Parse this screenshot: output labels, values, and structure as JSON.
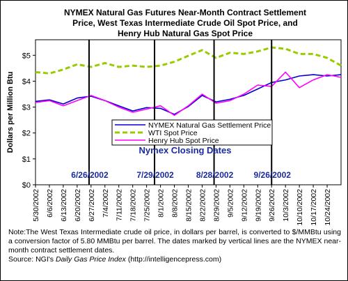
{
  "chart_data": {
    "type": "line",
    "title": "NYMEX Natural Gas Futures Near-Month Contract Settlement Price, West Texas Intermediate Crude Oil Spot Price, and Henry Hub Natural Gas Spot Price",
    "title_lines": [
      "NYMEX Natural Gas Futures Near-Month Contract Settlement",
      "Price, West Texas Intermediate Crude Oil Spot Price, and",
      "Henry Hub Natural Gas Spot Price"
    ],
    "ylabel": "Dollars per Million Btu",
    "ylim": [
      0,
      5.6
    ],
    "yticks": [
      "$0",
      "$1",
      "$2",
      "$3",
      "$4",
      "$5"
    ],
    "grid": false,
    "legend_placement": "center",
    "x_dates": [
      "5/30/2002",
      "6/6/2002",
      "6/13/2002",
      "6/20/2002",
      "6/27/2002",
      "7/4/2002",
      "7/11/2002",
      "7/18/2002",
      "7/25/2002",
      "8/1/2002",
      "8/8/2002",
      "8/15/2002",
      "8/22/2002",
      "8/29/2002",
      "9/5/2002",
      "9/12/2002",
      "9/19/2002",
      "9/26/2002",
      "10/3/2002",
      "10/10/2002",
      "10/17/2002",
      "10/24/2002",
      "10/31/2002"
    ],
    "x_ticks": [
      "5/30/2002",
      "6/6/2002",
      "6/13/2002",
      "6/20/2002",
      "6/27/2002",
      "7/4/2002",
      "7/11/2002",
      "7/18/2002",
      "7/25/2002",
      "8/1/2002",
      "8/8/2002",
      "8/15/2002",
      "8/22/2002",
      "8/29/2002",
      "9/5/2002",
      "9/12/2002",
      "9/19/2002",
      "9/26/2002",
      "10/3/2002",
      "10/10/2002",
      "10/17/2002",
      "10/24/2002"
    ],
    "series": [
      {
        "name": "NYMEX Natural Gas Settlement Price",
        "color": "#0000cc",
        "style": "solid",
        "values": [
          3.22,
          3.28,
          3.12,
          3.35,
          3.42,
          3.25,
          3.05,
          2.85,
          2.98,
          2.95,
          2.72,
          3.02,
          3.45,
          3.2,
          3.3,
          3.45,
          3.7,
          3.95,
          4.05,
          4.2,
          4.25,
          4.2,
          4.25
        ]
      },
      {
        "name": "WTI Spot Price",
        "color": "#99cc00",
        "style": "dashed",
        "values": [
          4.35,
          4.3,
          4.45,
          4.65,
          4.55,
          4.7,
          4.55,
          4.6,
          4.55,
          4.6,
          4.75,
          4.98,
          5.2,
          4.9,
          5.1,
          5.05,
          5.15,
          5.3,
          5.25,
          5.05,
          5.05,
          4.9,
          4.6
        ]
      },
      {
        "name": "Henry Hub Spot Price",
        "color": "#ff00ff",
        "style": "solid",
        "values": [
          3.18,
          3.25,
          3.05,
          3.25,
          3.45,
          3.25,
          3.0,
          2.8,
          2.92,
          3.05,
          2.68,
          3.05,
          3.5,
          3.15,
          3.25,
          3.5,
          3.85,
          3.8,
          4.35,
          3.75,
          4.05,
          4.25,
          4.15
        ]
      }
    ],
    "vertical_lines": [
      {
        "date": "6/26/2002",
        "label": "6/26/2002"
      },
      {
        "date": "7/29/2002",
        "label": "7/29/2002"
      },
      {
        "date": "8/28/2002",
        "label": "8/28/2002"
      },
      {
        "date": "9/26/2002",
        "label": "9/26/2002"
      }
    ],
    "annotation": "Nymex Closing Dates"
  },
  "note": {
    "text": "Note:The West Texas Intermediate crude oil price, in dollars per barrel,  is converted to $/MMBtu using a conversion factor of 5.80 MMBtu per barrel.  The dates marked by vertical lines are the NYMEX near-month contract settlement dates.",
    "source_prefix": "Source:  NGI's ",
    "source_title": "Daily Gas Price Index",
    "source_suffix": " (http://intelligencepress.com)"
  }
}
